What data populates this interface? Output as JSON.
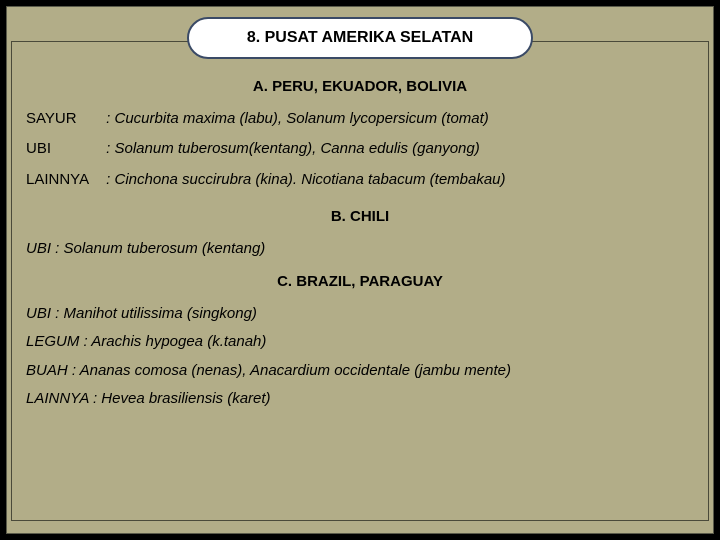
{
  "colors": {
    "bg": "#b2ad88",
    "border": "#3a4a66",
    "pill_bg": "#ffffff",
    "edge": "#000000"
  },
  "title": "8. PUSAT  AMERIKA  SELATAN",
  "sections": {
    "a": {
      "heading": "A. PERU, EKUADOR, BOLIVIA",
      "rows": [
        {
          "label": "SAYUR",
          "text": ": Cucurbita maxima (labu), Solanum lycopersicum (tomat)"
        },
        {
          "label": "UBI",
          "text": ": Solanum tuberosum(kentang), Canna edulis (ganyong)"
        },
        {
          "label": "LAINNYA",
          "text": ": Cinchona succirubra (kina). Nicotiana tabacum (tembakau)"
        }
      ]
    },
    "b": {
      "heading": "B. CHILI",
      "line": "UBI  : Solanum tuberosum (kentang)"
    },
    "c": {
      "heading": "C. BRAZIL,  PARAGUAY",
      "lines": [
        "UBI  : Manihot utilissima (singkong)",
        "LEGUM  : Arachis hypogea (k.tanah)",
        "BUAH  : Ananas comosa (nenas), Anacardium occidentale  (jambu mente)",
        "LAINNYA  :  Hevea brasiliensis   (karet)"
      ]
    }
  }
}
